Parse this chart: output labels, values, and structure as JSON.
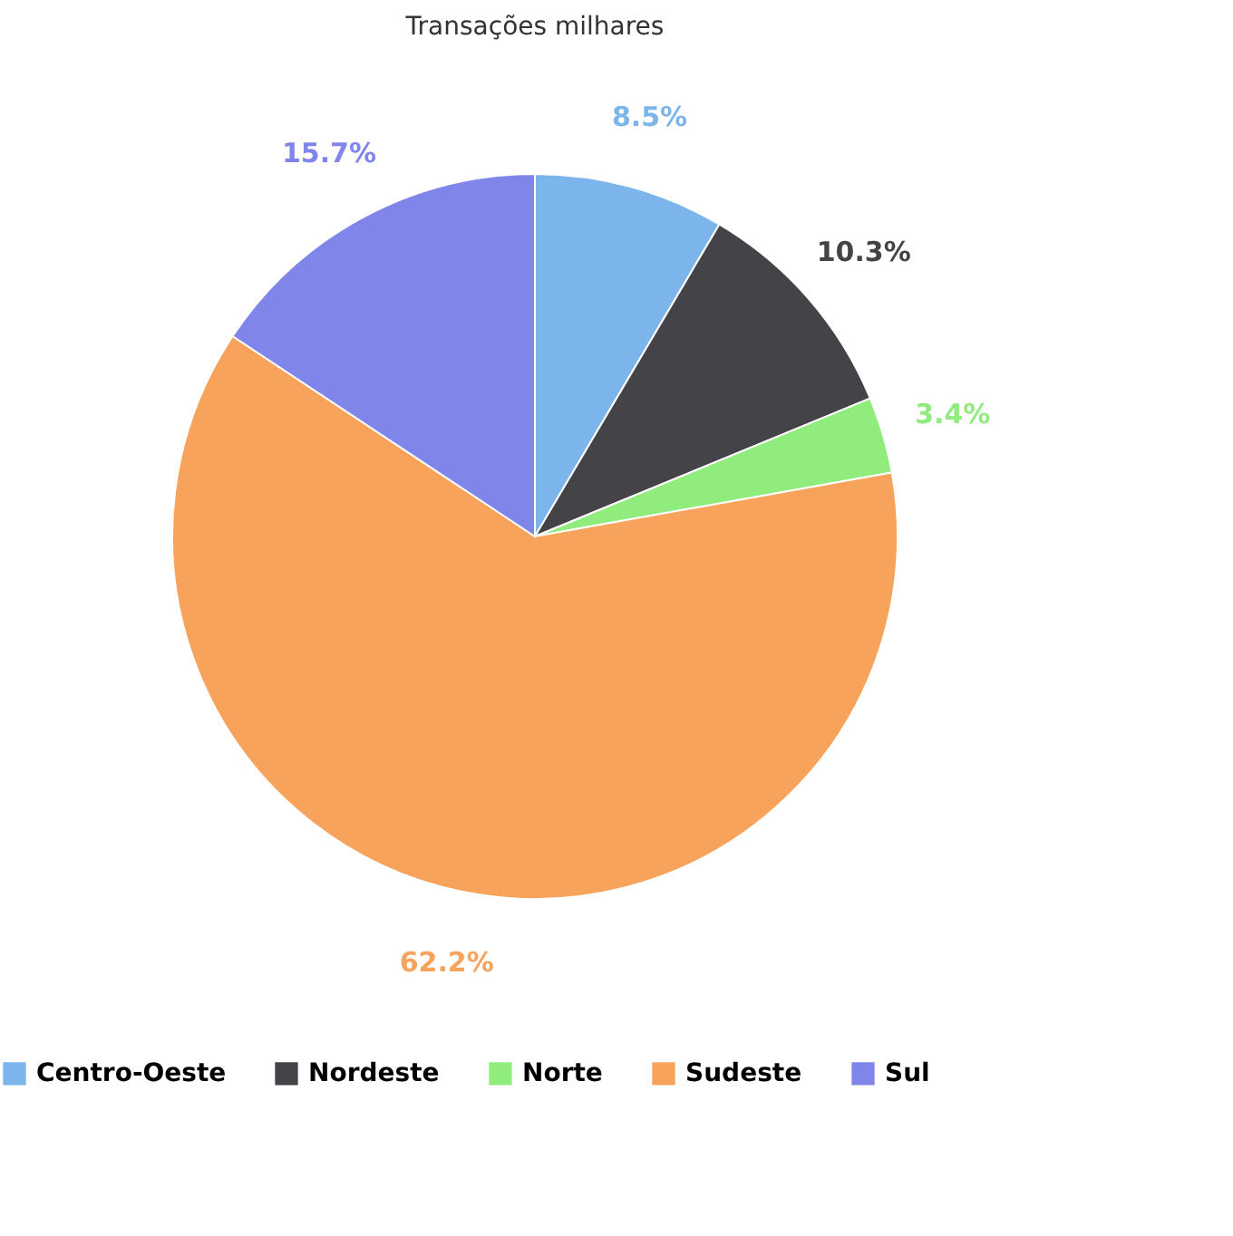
{
  "chart_data": {
    "type": "pie",
    "title": "Transações milhares",
    "categories": [
      "Centro-Oeste",
      "Nordeste",
      "Norte",
      "Sudeste",
      "Sul"
    ],
    "values": [
      8.5,
      10.3,
      3.4,
      62.2,
      15.7
    ],
    "colors": [
      "#7cb5ec",
      "#434348",
      "#90ed7d",
      "#f7a35c",
      "#8085e9"
    ],
    "value_labels": [
      "8.5%",
      "10.3%",
      "3.4%",
      "62.2%",
      "15.7%"
    ],
    "legend": "bottom"
  }
}
